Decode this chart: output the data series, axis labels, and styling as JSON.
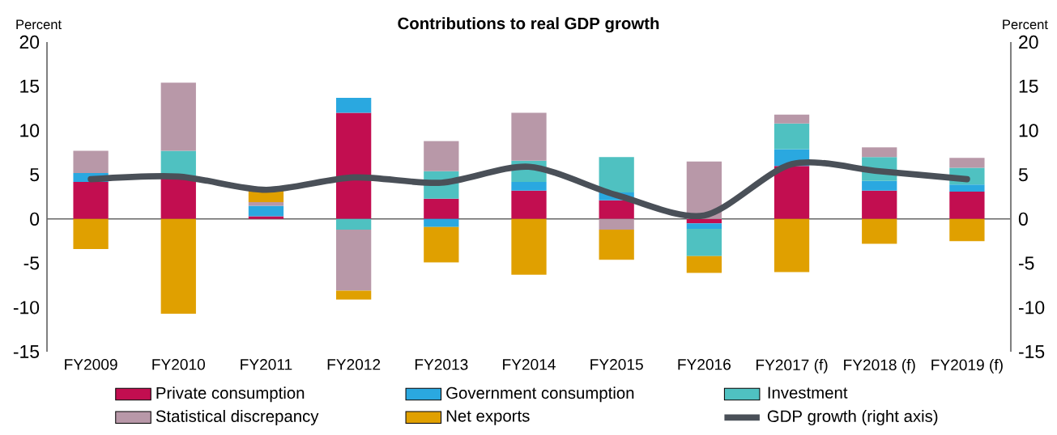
{
  "chart_data": {
    "type": "bar",
    "stacked": true,
    "title": "Contributions to real GDP growth",
    "ylabel": "Percent",
    "y2label": "Percent",
    "categories": [
      "FY2009",
      "FY2010",
      "FY2011",
      "FY2012",
      "FY2013",
      "FY2014",
      "FY2015",
      "FY2016",
      "FY2017 (f)",
      "FY2018 (f)",
      "FY2019 (f)"
    ],
    "series": [
      {
        "name": "Private consumption",
        "color": "#c20e50",
        "values": [
          4.2,
          4.8,
          0.3,
          12.0,
          2.3,
          3.2,
          2.1,
          -0.5,
          6.0,
          3.2,
          3.1
        ]
      },
      {
        "name": "Government consumption",
        "color": "#2aa8e0",
        "values": [
          1.0,
          null,
          1.2,
          1.7,
          -0.9,
          1.0,
          0.9,
          -0.6,
          1.9,
          1.1,
          0.8
        ]
      },
      {
        "name": "Investment",
        "color": "#4fc1c1",
        "values": [
          null,
          2.9,
          null,
          -1.2,
          3.1,
          2.4,
          4.0,
          -3.1,
          2.9,
          2.7,
          1.9
        ]
      },
      {
        "name": "Statistical discrepancy",
        "color": "#b898a8",
        "values": [
          2.5,
          7.7,
          0.4,
          -6.9,
          3.4,
          5.4,
          -1.2,
          6.5,
          1.0,
          1.1,
          1.1
        ]
      },
      {
        "name": "Net exports",
        "color": "#e0a000",
        "values": [
          -3.4,
          -10.7,
          1.3,
          -1.0,
          -4.0,
          -6.3,
          -3.4,
          -1.9,
          -6.0,
          -2.8,
          -2.5
        ]
      },
      {
        "name": "GDP growth (right axis)",
        "type": "line",
        "axis": "y2",
        "color": "#4a5058",
        "values": [
          4.5,
          4.8,
          3.3,
          4.7,
          4.1,
          5.9,
          2.7,
          0.4,
          6.2,
          5.4,
          4.5
        ]
      }
    ],
    "ylim": [
      -15,
      20
    ],
    "yticks": [
      -15,
      -10,
      -5,
      0,
      5,
      10,
      15,
      20
    ],
    "y2lim": [
      -15,
      20
    ],
    "y2ticks": [
      -15,
      -10,
      -5,
      0,
      5,
      10,
      15,
      20
    ],
    "legend": "bottom"
  }
}
